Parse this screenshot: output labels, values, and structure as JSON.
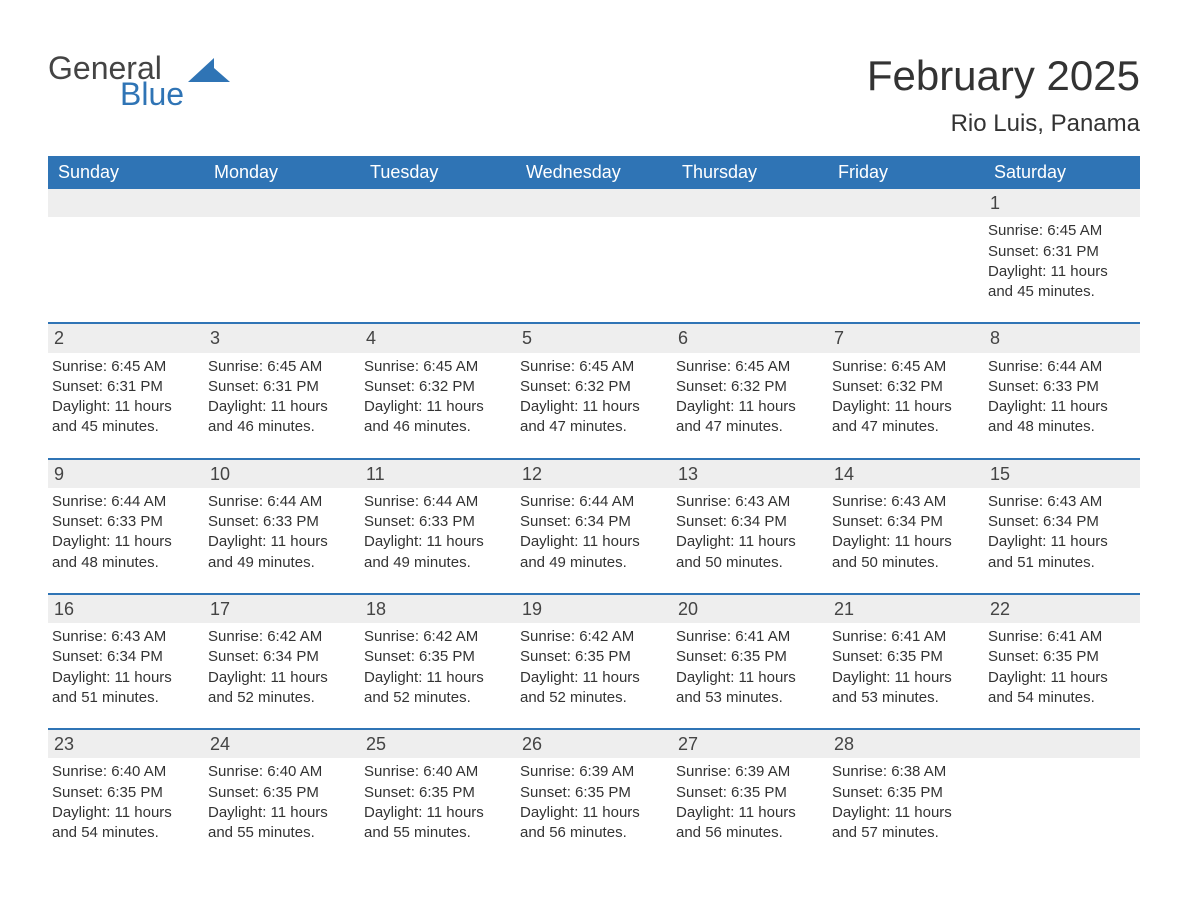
{
  "logo": {
    "word1": "General",
    "word2": "Blue",
    "accent_color": "#2f74b5",
    "text_color": "#444444"
  },
  "header": {
    "month_title": "February 2025",
    "location": "Rio Luis, Panama"
  },
  "colors": {
    "header_bg": "#2f74b5",
    "header_text": "#ffffff",
    "daynum_bg": "#eeeeee",
    "row_border": "#2f74b5",
    "body_text": "#333333",
    "background": "#ffffff"
  },
  "weekdays": [
    "Sunday",
    "Monday",
    "Tuesday",
    "Wednesday",
    "Thursday",
    "Friday",
    "Saturday"
  ],
  "weeks": [
    [
      null,
      null,
      null,
      null,
      null,
      null,
      {
        "d": "1",
        "sunrise": "Sunrise: 6:45 AM",
        "sunset": "Sunset: 6:31 PM",
        "daylight": "Daylight: 11 hours and 45 minutes."
      }
    ],
    [
      {
        "d": "2",
        "sunrise": "Sunrise: 6:45 AM",
        "sunset": "Sunset: 6:31 PM",
        "daylight": "Daylight: 11 hours and 45 minutes."
      },
      {
        "d": "3",
        "sunrise": "Sunrise: 6:45 AM",
        "sunset": "Sunset: 6:31 PM",
        "daylight": "Daylight: 11 hours and 46 minutes."
      },
      {
        "d": "4",
        "sunrise": "Sunrise: 6:45 AM",
        "sunset": "Sunset: 6:32 PM",
        "daylight": "Daylight: 11 hours and 46 minutes."
      },
      {
        "d": "5",
        "sunrise": "Sunrise: 6:45 AM",
        "sunset": "Sunset: 6:32 PM",
        "daylight": "Daylight: 11 hours and 47 minutes."
      },
      {
        "d": "6",
        "sunrise": "Sunrise: 6:45 AM",
        "sunset": "Sunset: 6:32 PM",
        "daylight": "Daylight: 11 hours and 47 minutes."
      },
      {
        "d": "7",
        "sunrise": "Sunrise: 6:45 AM",
        "sunset": "Sunset: 6:32 PM",
        "daylight": "Daylight: 11 hours and 47 minutes."
      },
      {
        "d": "8",
        "sunrise": "Sunrise: 6:44 AM",
        "sunset": "Sunset: 6:33 PM",
        "daylight": "Daylight: 11 hours and 48 minutes."
      }
    ],
    [
      {
        "d": "9",
        "sunrise": "Sunrise: 6:44 AM",
        "sunset": "Sunset: 6:33 PM",
        "daylight": "Daylight: 11 hours and 48 minutes."
      },
      {
        "d": "10",
        "sunrise": "Sunrise: 6:44 AM",
        "sunset": "Sunset: 6:33 PM",
        "daylight": "Daylight: 11 hours and 49 minutes."
      },
      {
        "d": "11",
        "sunrise": "Sunrise: 6:44 AM",
        "sunset": "Sunset: 6:33 PM",
        "daylight": "Daylight: 11 hours and 49 minutes."
      },
      {
        "d": "12",
        "sunrise": "Sunrise: 6:44 AM",
        "sunset": "Sunset: 6:34 PM",
        "daylight": "Daylight: 11 hours and 49 minutes."
      },
      {
        "d": "13",
        "sunrise": "Sunrise: 6:43 AM",
        "sunset": "Sunset: 6:34 PM",
        "daylight": "Daylight: 11 hours and 50 minutes."
      },
      {
        "d": "14",
        "sunrise": "Sunrise: 6:43 AM",
        "sunset": "Sunset: 6:34 PM",
        "daylight": "Daylight: 11 hours and 50 minutes."
      },
      {
        "d": "15",
        "sunrise": "Sunrise: 6:43 AM",
        "sunset": "Sunset: 6:34 PM",
        "daylight": "Daylight: 11 hours and 51 minutes."
      }
    ],
    [
      {
        "d": "16",
        "sunrise": "Sunrise: 6:43 AM",
        "sunset": "Sunset: 6:34 PM",
        "daylight": "Daylight: 11 hours and 51 minutes."
      },
      {
        "d": "17",
        "sunrise": "Sunrise: 6:42 AM",
        "sunset": "Sunset: 6:34 PM",
        "daylight": "Daylight: 11 hours and 52 minutes."
      },
      {
        "d": "18",
        "sunrise": "Sunrise: 6:42 AM",
        "sunset": "Sunset: 6:35 PM",
        "daylight": "Daylight: 11 hours and 52 minutes."
      },
      {
        "d": "19",
        "sunrise": "Sunrise: 6:42 AM",
        "sunset": "Sunset: 6:35 PM",
        "daylight": "Daylight: 11 hours and 52 minutes."
      },
      {
        "d": "20",
        "sunrise": "Sunrise: 6:41 AM",
        "sunset": "Sunset: 6:35 PM",
        "daylight": "Daylight: 11 hours and 53 minutes."
      },
      {
        "d": "21",
        "sunrise": "Sunrise: 6:41 AM",
        "sunset": "Sunset: 6:35 PM",
        "daylight": "Daylight: 11 hours and 53 minutes."
      },
      {
        "d": "22",
        "sunrise": "Sunrise: 6:41 AM",
        "sunset": "Sunset: 6:35 PM",
        "daylight": "Daylight: 11 hours and 54 minutes."
      }
    ],
    [
      {
        "d": "23",
        "sunrise": "Sunrise: 6:40 AM",
        "sunset": "Sunset: 6:35 PM",
        "daylight": "Daylight: 11 hours and 54 minutes."
      },
      {
        "d": "24",
        "sunrise": "Sunrise: 6:40 AM",
        "sunset": "Sunset: 6:35 PM",
        "daylight": "Daylight: 11 hours and 55 minutes."
      },
      {
        "d": "25",
        "sunrise": "Sunrise: 6:40 AM",
        "sunset": "Sunset: 6:35 PM",
        "daylight": "Daylight: 11 hours and 55 minutes."
      },
      {
        "d": "26",
        "sunrise": "Sunrise: 6:39 AM",
        "sunset": "Sunset: 6:35 PM",
        "daylight": "Daylight: 11 hours and 56 minutes."
      },
      {
        "d": "27",
        "sunrise": "Sunrise: 6:39 AM",
        "sunset": "Sunset: 6:35 PM",
        "daylight": "Daylight: 11 hours and 56 minutes."
      },
      {
        "d": "28",
        "sunrise": "Sunrise: 6:38 AM",
        "sunset": "Sunset: 6:35 PM",
        "daylight": "Daylight: 11 hours and 57 minutes."
      },
      null
    ]
  ]
}
